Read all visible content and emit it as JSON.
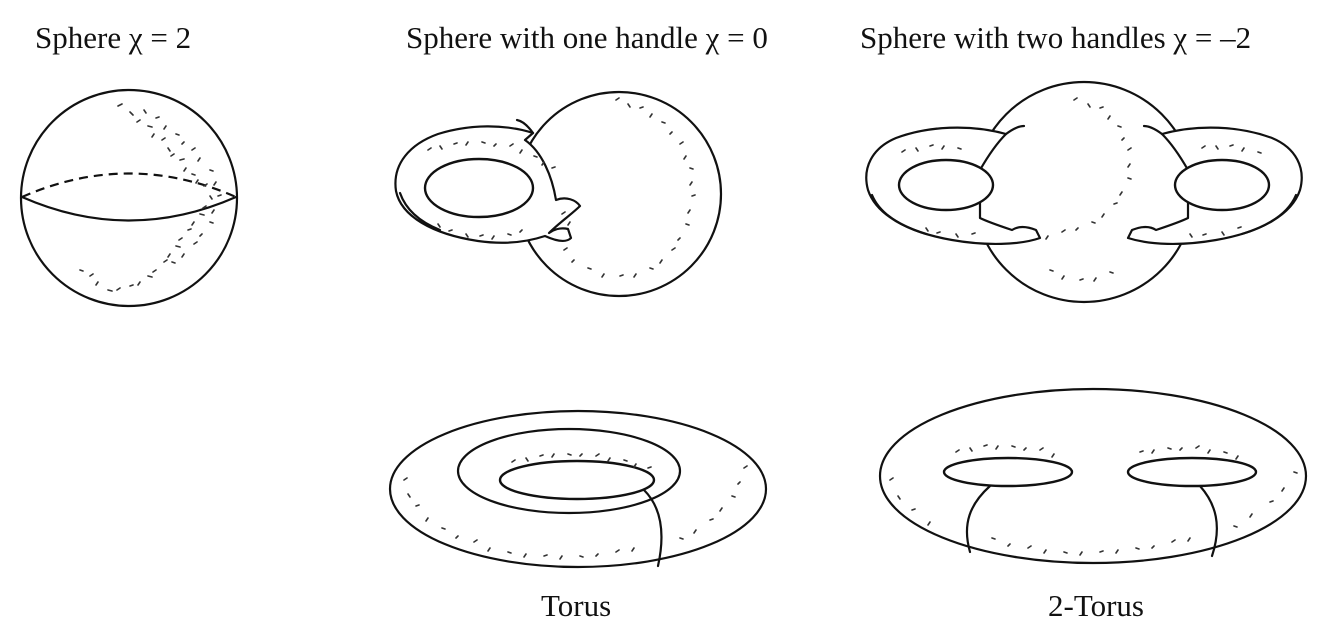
{
  "labels": {
    "sphere": "Sphere χ = 2",
    "one_handle": "Sphere with one handle χ = 0",
    "two_handles": "Sphere with two handles χ = –2",
    "torus": "Torus",
    "two_torus": "2-Torus"
  },
  "colors": {
    "ink": "#111111",
    "stipple": "#333333",
    "background": "#ffffff"
  }
}
